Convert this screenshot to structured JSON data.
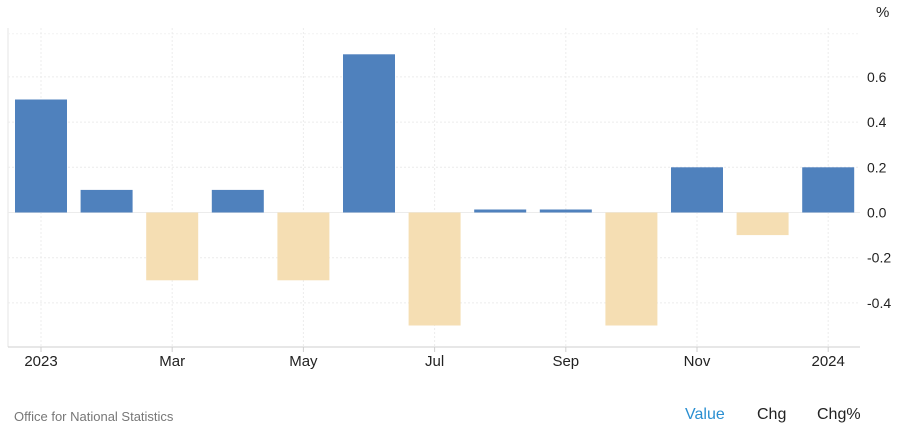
{
  "chart_data": {
    "type": "bar",
    "categories": [
      "Jan 2023",
      "Feb 2023",
      "Mar 2023",
      "Apr 2023",
      "May 2023",
      "Jun 2023",
      "Jul 2023",
      "Aug 2023",
      "Sep 2023",
      "Oct 2023",
      "Nov 2023",
      "Dec 2023",
      "Jan 2024"
    ],
    "values": [
      0.5,
      0.1,
      -0.3,
      0.1,
      -0.3,
      0.7,
      -0.5,
      0.01,
      0.01,
      -0.5,
      0.2,
      -0.1,
      0.2
    ],
    "x_tick_labels": [
      {
        "index": 0,
        "label": "2023"
      },
      {
        "index": 2,
        "label": "Mar"
      },
      {
        "index": 4,
        "label": "May"
      },
      {
        "index": 6,
        "label": "Jul"
      },
      {
        "index": 8,
        "label": "Sep"
      },
      {
        "index": 10,
        "label": "Nov"
      },
      {
        "index": 12,
        "label": "2024"
      }
    ],
    "y_ticks": [
      0.6,
      0.4,
      0.2,
      0.0,
      -0.2,
      -0.4
    ],
    "y_tick_labels": [
      "0.6",
      "0.4",
      "0.2",
      "0.0",
      "-0.2",
      "-0.4"
    ],
    "ylim": [
      -0.6,
      0.8
    ],
    "unit": "%",
    "grid": true,
    "colors": {
      "positive": "#4f81bd",
      "negative": "#f5deb3"
    }
  },
  "footer": {
    "source": "Office for National Statistics",
    "modes": [
      "Value",
      "Chg",
      "Chg%"
    ],
    "active_mode": "Value"
  }
}
